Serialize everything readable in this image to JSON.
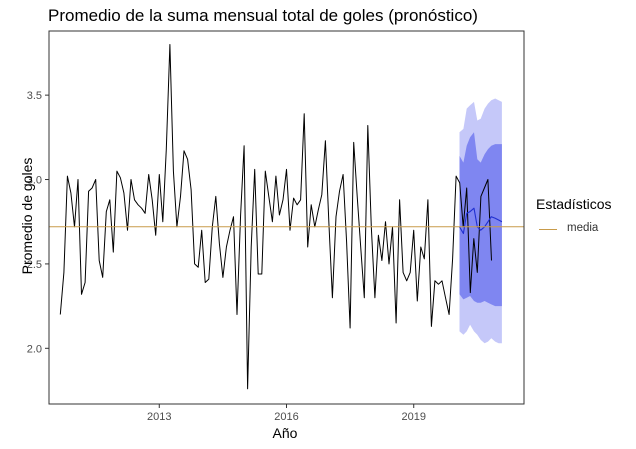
{
  "chart_data": {
    "type": "line",
    "title": "Promedio de la suma mensual total de goles (pronóstico)",
    "xlabel": "Año",
    "ylabel": "Promedio de goles",
    "xlim": [
      2010.4,
      2021.6
    ],
    "ylim": [
      1.67,
      3.88
    ],
    "x_ticks": [
      2013,
      2016,
      2019
    ],
    "x_tick_labels": [
      "2013",
      "2016",
      "2019"
    ],
    "y_ticks": [
      2.0,
      2.5,
      3.0,
      3.5
    ],
    "y_tick_labels": [
      "2.0",
      "2.5",
      "3.0",
      "3.5"
    ],
    "grid": false,
    "legend": {
      "title": "Estadísticos",
      "placement": "right",
      "entries": [
        {
          "label": "media",
          "color": "#c89b4a"
        }
      ]
    },
    "hline": {
      "name": "media",
      "y": 2.72,
      "color": "#c89b4a"
    },
    "series": [
      {
        "role": "observed",
        "color": "#000000",
        "x_start": 2010.667,
        "x_step": 0.08333,
        "values": [
          2.2,
          2.45,
          3.02,
          2.92,
          2.72,
          3.0,
          2.32,
          2.39,
          2.93,
          2.95,
          3.0,
          2.52,
          2.42,
          2.81,
          2.88,
          2.57,
          3.05,
          3.01,
          2.92,
          2.7,
          3.0,
          2.88,
          2.85,
          2.83,
          2.8,
          3.03,
          2.88,
          2.67,
          3.03,
          2.75,
          3.18,
          3.8,
          3.05,
          2.72,
          2.9,
          3.17,
          3.12,
          2.94,
          2.5,
          2.48,
          2.7,
          2.39,
          2.41,
          2.72,
          2.9,
          2.62,
          2.42,
          2.6,
          2.7,
          2.78,
          2.2,
          2.79,
          3.2,
          1.76,
          2.6,
          3.06,
          2.44,
          2.44,
          3.05,
          2.9,
          2.75,
          3.02,
          2.79,
          2.88,
          3.06,
          2.7,
          2.89,
          2.85,
          2.88,
          3.39,
          2.6,
          2.85,
          2.72,
          2.82,
          2.91,
          3.23,
          2.74,
          2.3,
          2.78,
          2.93,
          3.03,
          2.63,
          2.12,
          3.22,
          2.9,
          2.6,
          2.3,
          3.32,
          2.72,
          2.3,
          2.67,
          2.52,
          2.75,
          2.5,
          2.72,
          2.15,
          2.88,
          2.45,
          2.4,
          2.45,
          2.7,
          2.28,
          2.6,
          2.53,
          2.88,
          2.13,
          2.4,
          2.38,
          2.4,
          2.3,
          2.2,
          2.53,
          3.02,
          2.98,
          2.72,
          2.95,
          2.33,
          2.65,
          2.45,
          2.9,
          2.95,
          3.0,
          2.52
        ]
      },
      {
        "role": "forecast",
        "color": "#1f2fd0",
        "x": [
          2020.08,
          2020.17,
          2020.25,
          2020.33,
          2020.42,
          2020.5,
          2020.58,
          2020.67,
          2020.75,
          2020.83,
          2020.92,
          2021.0,
          2021.08
        ],
        "values": [
          2.72,
          2.68,
          2.8,
          2.81,
          2.83,
          2.72,
          2.7,
          2.72,
          2.75,
          2.78,
          2.77,
          2.76,
          2.75
        ],
        "band80": {
          "color": "#7f86f1",
          "lower": [
            2.32,
            2.29,
            2.3,
            2.31,
            2.28,
            2.27,
            2.27,
            2.28,
            2.27,
            2.26,
            2.25,
            2.25,
            2.25
          ],
          "upper": [
            3.14,
            3.1,
            3.2,
            3.25,
            3.28,
            3.12,
            3.1,
            3.15,
            3.18,
            3.2,
            3.21,
            3.21,
            3.21
          ]
        },
        "band95": {
          "color": "#c5c8f9",
          "lower": [
            2.1,
            2.08,
            2.1,
            2.14,
            2.1,
            2.08,
            2.05,
            2.03,
            2.04,
            2.06,
            2.04,
            2.03,
            2.03
          ],
          "upper": [
            3.28,
            3.3,
            3.42,
            3.44,
            3.46,
            3.35,
            3.36,
            3.42,
            3.45,
            3.47,
            3.48,
            3.47,
            3.46
          ]
        }
      }
    ]
  }
}
